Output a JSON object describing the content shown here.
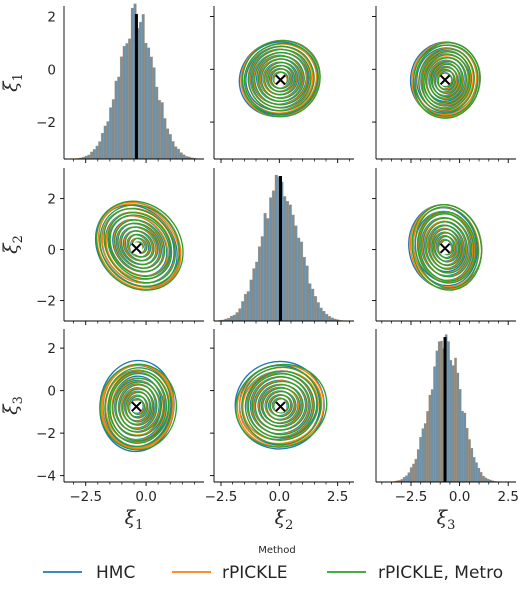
{
  "chart_data": {
    "type": "pairplot",
    "variables": [
      {
        "symbol": "ξ",
        "sub": "1"
      },
      {
        "symbol": "ξ",
        "sub": "2"
      },
      {
        "symbol": "ξ",
        "sub": "3"
      }
    ],
    "ranges": [
      {
        "min": -3.4,
        "max": 2.4,
        "ticks": [
          -2,
          0,
          2
        ],
        "tick_labels": [
          "−2",
          "0",
          "2"
        ]
      },
      {
        "min": -2.8,
        "max": 3.2,
        "ticks": [
          -2,
          0,
          2
        ],
        "tick_labels": [
          "−2",
          "0",
          "2"
        ]
      },
      {
        "min": -4.3,
        "max": 2.9,
        "ticks": [
          -4,
          -2,
          0,
          2
        ],
        "tick_labels": [
          "−4",
          "−2",
          "0",
          "2"
        ]
      }
    ],
    "x_ticks": [
      {
        "ticks": [
          -2.5,
          0.0
        ],
        "tick_labels": [
          "−2.5",
          "0.0"
        ]
      },
      {
        "ticks": [
          -2.5,
          0.0,
          2.5
        ],
        "tick_labels": [
          "−2.5",
          "0.0",
          "2.5"
        ]
      },
      {
        "ticks": [
          -2.5,
          0.0,
          2.5
        ],
        "tick_labels": [
          "−2.5",
          "0.0",
          "2.5"
        ]
      }
    ],
    "true_values": [
      -0.4,
      0.05,
      -0.75
    ],
    "diag_sd": [
      0.75,
      0.8,
      0.8
    ],
    "offdiag": [
      {
        "row": 0,
        "col": 1,
        "center": [
          0.05,
          -0.35
        ],
        "sx": 1.0,
        "sy": 0.85,
        "angle": 25
      },
      {
        "row": 0,
        "col": 2,
        "center": [
          -0.7,
          -0.4
        ],
        "sx": 1.0,
        "sy": 0.85,
        "angle": -10
      },
      {
        "row": 1,
        "col": 0,
        "center": [
          -0.3,
          0.15
        ],
        "sx": 0.95,
        "sy": 1.1,
        "angle": 40
      },
      {
        "row": 1,
        "col": 2,
        "center": [
          -0.7,
          0.1
        ],
        "sx": 1.05,
        "sy": 1.0,
        "angle": 10
      },
      {
        "row": 2,
        "col": 0,
        "center": [
          -0.35,
          -0.75
        ],
        "sx": 0.9,
        "sy": 1.2,
        "angle": -5
      },
      {
        "row": 2,
        "col": 1,
        "center": [
          0.05,
          -0.7
        ],
        "sx": 1.1,
        "sy": 1.15,
        "angle": 15
      }
    ],
    "series": [
      {
        "name": "HMC",
        "color": "#1f77b4"
      },
      {
        "name": "rPICKLE",
        "color": "#ff7f0e"
      },
      {
        "name": "rPICKLE, Metro",
        "color": "#2ca02c"
      }
    ],
    "legend": {
      "title": "Method",
      "placement": "bottom-center"
    },
    "marker_color": "#000000",
    "hist_color": "#3f6c8a"
  }
}
